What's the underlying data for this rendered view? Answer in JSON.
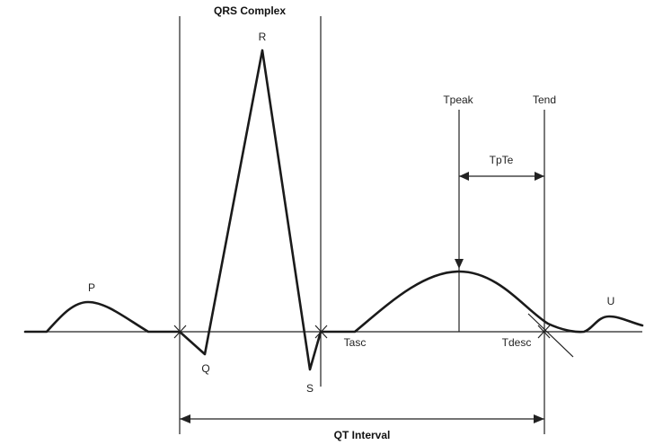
{
  "labels": {
    "qrs_complex": "QRS Complex",
    "r": "R",
    "p": "P",
    "q": "Q",
    "s": "S",
    "tpeak": "Tpeak",
    "tend": "Tend",
    "tpte": "TpTe",
    "u": "U",
    "tasc": "Tasc",
    "tdesc": "Tdesc",
    "qt_interval": "QT Interval"
  }
}
